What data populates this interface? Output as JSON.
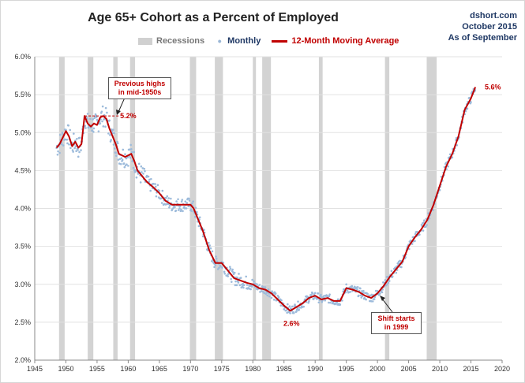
{
  "chart_data": {
    "type": "line",
    "title": "Age 65+ Cohort as a Percent of Employed",
    "credit": [
      "dshort.com",
      "October 2015",
      "As of September"
    ],
    "legend": [
      "Recessions",
      "Monthly",
      "12-Month Moving Average"
    ],
    "xlim": [
      1945,
      2020
    ],
    "ylim": [
      2.0,
      6.0
    ],
    "x_ticks": [
      1945,
      1950,
      1955,
      1960,
      1965,
      1970,
      1975,
      1980,
      1985,
      1990,
      1995,
      2000,
      2005,
      2010,
      2015,
      2020
    ],
    "y_ticks": [
      "2.0%",
      "2.5%",
      "3.0%",
      "3.5%",
      "4.0%",
      "4.5%",
      "5.0%",
      "5.5%",
      "6.0%"
    ],
    "grid": true,
    "legend_position": "top",
    "recessions": [
      [
        1948.9,
        1949.8
      ],
      [
        1953.5,
        1954.4
      ],
      [
        1957.6,
        1958.3
      ],
      [
        1960.3,
        1961.1
      ],
      [
        1969.9,
        1970.9
      ],
      [
        1973.9,
        1975.2
      ],
      [
        1980.0,
        1980.5
      ],
      [
        1981.5,
        1982.9
      ],
      [
        1990.6,
        1991.2
      ],
      [
        2001.2,
        2001.9
      ],
      [
        2007.9,
        2009.5
      ]
    ],
    "series": [
      {
        "name": "12-Month Moving Average",
        "x": [
          1948.5,
          1949.0,
          1950.0,
          1950.5,
          1951.0,
          1951.5,
          1952.0,
          1952.5,
          1953.0,
          1953.5,
          1954.0,
          1954.5,
          1955.0,
          1955.5,
          1956.0,
          1956.5,
          1957.0,
          1957.5,
          1958.0,
          1958.5,
          1959.0,
          1959.5,
          1960.0,
          1960.5,
          1961.0,
          1961.5,
          1962.0,
          1962.5,
          1963.0,
          1964.0,
          1965.0,
          1966.0,
          1967.0,
          1968.0,
          1969.0,
          1970.0,
          1970.5,
          1971.0,
          1972.0,
          1973.0,
          1974.0,
          1975.0,
          1976.0,
          1977.0,
          1978.0,
          1979.0,
          1980.0,
          1981.0,
          1982.0,
          1983.0,
          1984.0,
          1985.0,
          1986.0,
          1987.0,
          1988.0,
          1989.0,
          1990.0,
          1991.0,
          1992.0,
          1993.0,
          1994.0,
          1995.0,
          1996.0,
          1997.0,
          1998.0,
          1999.0,
          2000.0,
          2001.0,
          2002.0,
          2003.0,
          2004.0,
          2005.0,
          2006.0,
          2007.0,
          2008.0,
          2009.0,
          2010.0,
          2011.0,
          2012.0,
          2013.0,
          2014.0,
          2015.0,
          2015.7
        ],
        "values": [
          4.8,
          4.85,
          5.02,
          4.95,
          4.82,
          4.88,
          4.8,
          4.85,
          5.22,
          5.12,
          5.08,
          5.12,
          5.1,
          5.2,
          5.22,
          5.18,
          5.05,
          4.95,
          4.85,
          4.72,
          4.7,
          4.68,
          4.7,
          4.72,
          4.62,
          4.5,
          4.45,
          4.4,
          4.35,
          4.28,
          4.2,
          4.1,
          4.05,
          4.05,
          4.05,
          4.05,
          4.0,
          3.9,
          3.7,
          3.45,
          3.28,
          3.28,
          3.18,
          3.08,
          3.05,
          3.02,
          3.0,
          2.95,
          2.93,
          2.88,
          2.8,
          2.72,
          2.65,
          2.7,
          2.75,
          2.82,
          2.85,
          2.8,
          2.82,
          2.78,
          2.78,
          2.95,
          2.93,
          2.9,
          2.85,
          2.82,
          2.88,
          2.98,
          3.1,
          3.2,
          3.3,
          3.5,
          3.62,
          3.72,
          3.85,
          4.05,
          4.3,
          4.55,
          4.72,
          4.95,
          5.3,
          5.45,
          5.6
        ]
      }
    ],
    "annotations": {
      "prev_high_box": "Previous highs in mid-1950s",
      "prev_high_label": "5.2%",
      "low_label": "2.6%",
      "shift_box": "Shift starts in 1999",
      "last_label": "5.6%"
    }
  }
}
